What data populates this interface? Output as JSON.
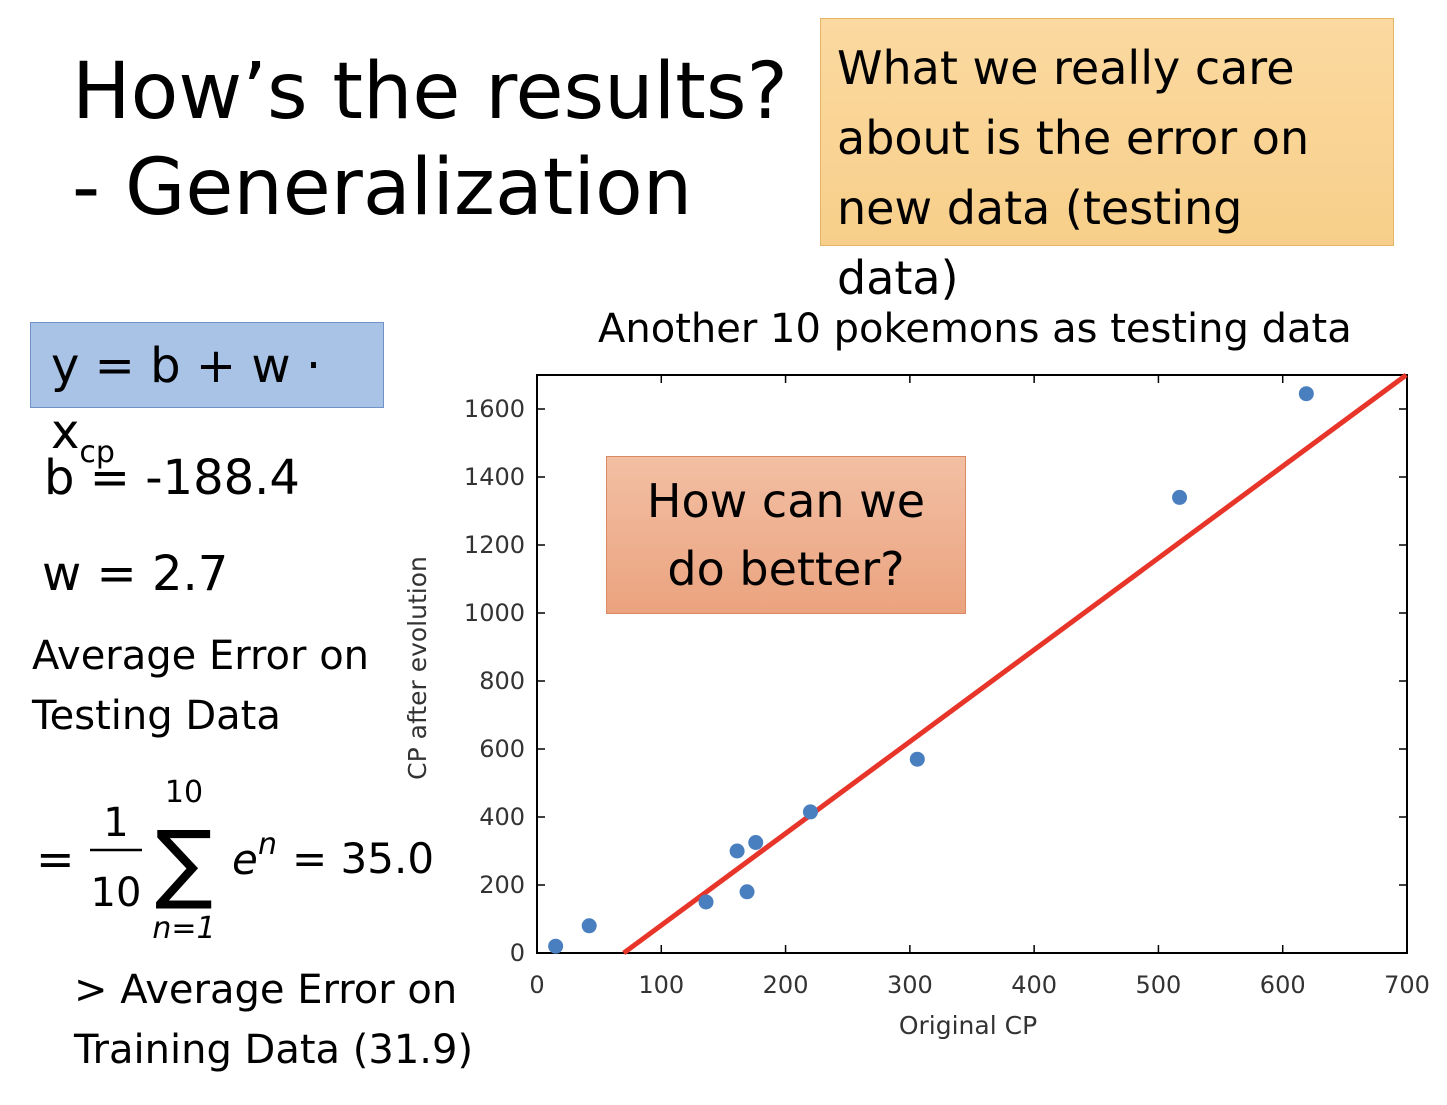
{
  "slide": {
    "title_line1": "How’s the results?",
    "title_line2": "- Generalization",
    "callout_lines": [
      "What we really care",
      "about is the error on",
      "new data (testing data)"
    ],
    "model_lhs": "y = b + w · x",
    "model_sub": "cp",
    "b_text": "b = -188.4",
    "w_text": "w = 2.7",
    "avg_label_line1": "Average Error on",
    "avg_label_line2": "Testing Data",
    "sum_equals": "=",
    "sum_numerator": "1",
    "sum_denominator": "10",
    "sum_symbol": "∑",
    "sum_upper": "10",
    "sum_lower": "n=1",
    "sum_term": "e",
    "sum_term_sup": "n",
    "sum_result": "= 35.0",
    "compare_line1": "> Average Error on",
    "compare_line2": "Training Data (31.9)",
    "better_line1": "How can we",
    "better_line2": "do better?"
  },
  "chart_data": {
    "type": "scatter",
    "title": "Another 10 pokemons as testing data",
    "xlabel": "Original CP",
    "ylabel": "CP after evolution",
    "xlim": [
      0,
      700
    ],
    "ylim": [
      0,
      1700
    ],
    "xticks": [
      0,
      100,
      200,
      300,
      400,
      500,
      600,
      700
    ],
    "yticks": [
      0,
      200,
      400,
      600,
      800,
      1000,
      1200,
      1400,
      1600
    ],
    "grid": false,
    "point_color": "#4a7fbf",
    "line_color": "#e8352a",
    "points": [
      {
        "x": 15,
        "y": 20
      },
      {
        "x": 42,
        "y": 80
      },
      {
        "x": 136,
        "y": 150
      },
      {
        "x": 161,
        "y": 300
      },
      {
        "x": 169,
        "y": 180
      },
      {
        "x": 176,
        "y": 325
      },
      {
        "x": 220,
        "y": 415
      },
      {
        "x": 306,
        "y": 570
      },
      {
        "x": 517,
        "y": 1340
      },
      {
        "x": 619,
        "y": 1645
      }
    ],
    "fit_line": {
      "b": -188.4,
      "w": 2.7
    }
  }
}
